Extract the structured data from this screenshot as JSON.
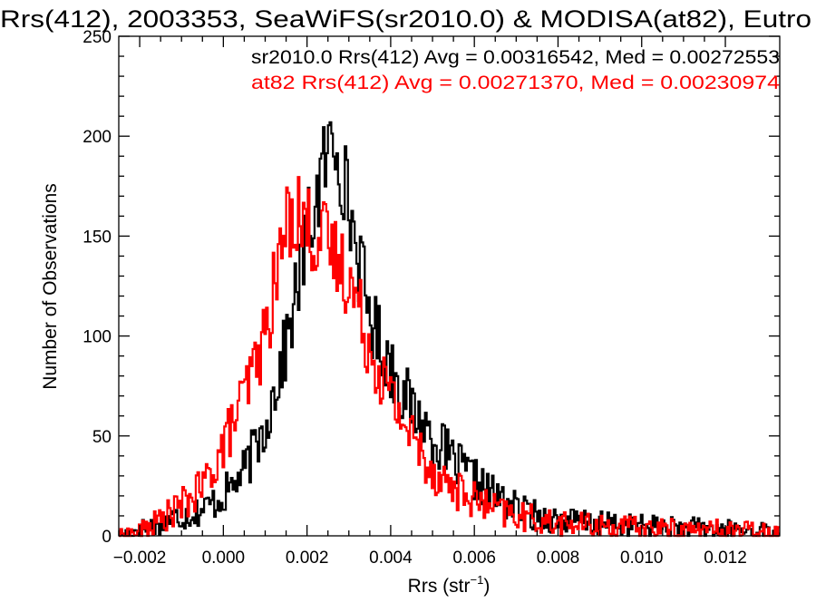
{
  "chart_data": {
    "type": "line",
    "step": true,
    "title": "Rrs(412), 2003353, SeaWiFS(sr2010.0) & MODISA(at82), Eutro",
    "xlabel_main": "Rrs (str",
    "xlabel_sup": "−1",
    "xlabel_close": ")",
    "ylabel": "Number of Observations",
    "xlim": [
      -0.0025,
      0.0133
    ],
    "ylim": [
      0,
      250
    ],
    "grid": false,
    "x_ticks": [
      -0.002,
      0.0,
      0.002,
      0.004,
      0.006,
      0.008,
      0.01,
      0.012
    ],
    "x_tick_labels": [
      "−0.002",
      "0.000",
      "0.002",
      "0.004",
      "0.006",
      "0.008",
      "0.010",
      "0.012"
    ],
    "y_ticks": [
      0,
      50,
      100,
      150,
      200,
      250
    ],
    "y_tick_labels": [
      "0",
      "50",
      "100",
      "150",
      "200",
      "250"
    ],
    "annotations": [
      {
        "text": "sr2010.0 Rrs(412) Avg = 0.00316542, Med = 0.00272553",
        "color": "#000000"
      },
      {
        "text": "at82 Rrs(412) Avg = 0.00271370, Med = 0.00230974",
        "color": "#ff0000"
      }
    ],
    "series": [
      {
        "color": "#000000",
        "x": [
          -0.0025,
          -0.002,
          -0.0015,
          -0.001,
          -0.0005,
          0.0,
          0.0005,
          0.001,
          0.0015,
          0.002,
          0.0025,
          0.0027,
          0.003,
          0.0035,
          0.004,
          0.0045,
          0.005,
          0.0055,
          0.006,
          0.0065,
          0.007,
          0.0075,
          0.008,
          0.009,
          0.01,
          0.011,
          0.012,
          0.0133
        ],
        "values": [
          0,
          3,
          7,
          10,
          13,
          20,
          32,
          55,
          95,
          150,
          192,
          200,
          165,
          110,
          85,
          64,
          50,
          37,
          28,
          20,
          14,
          10,
          8,
          6,
          5,
          4,
          3,
          2
        ]
      },
      {
        "color": "#ff0000",
        "x": [
          -0.0025,
          -0.002,
          -0.0015,
          -0.001,
          -0.0005,
          0.0,
          0.0005,
          0.001,
          0.0015,
          0.0017,
          0.002,
          0.0025,
          0.003,
          0.0035,
          0.004,
          0.0045,
          0.005,
          0.0055,
          0.006,
          0.0065,
          0.007,
          0.0075,
          0.008,
          0.009,
          0.01,
          0.011,
          0.012,
          0.0133
        ],
        "values": [
          0,
          2,
          8,
          15,
          24,
          45,
          70,
          100,
          155,
          165,
          155,
          145,
          130,
          95,
          70,
          50,
          33,
          24,
          18,
          13,
          10,
          8,
          6,
          5,
          4,
          3,
          3,
          2
        ]
      }
    ]
  }
}
